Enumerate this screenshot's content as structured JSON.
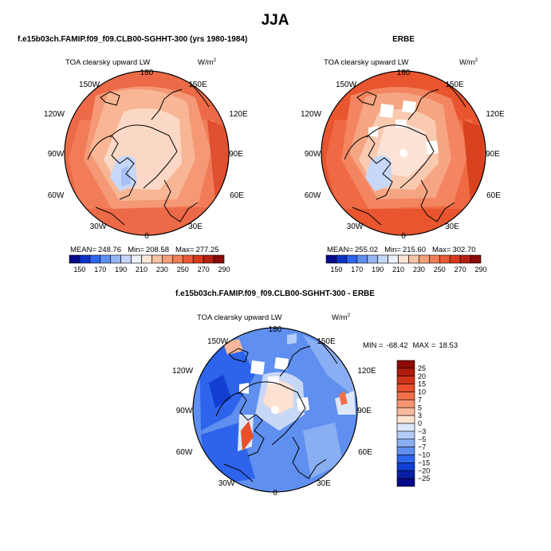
{
  "season_title": "JJA",
  "panels": {
    "model": {
      "header": "f.e15b03ch.FAMIP.f09_f09.CLB00-SGHHT-300 (yrs 1980-1984)",
      "plot_title": "TOA clearsky upward LW",
      "units": "W/m",
      "units_exp": "2",
      "lon_labels": {
        "top": "180",
        "upper_left": "150W",
        "upper_right": "150E",
        "left_upper": "120W",
        "right_upper": "120E",
        "left": "90W",
        "right": "90E",
        "left_lower": "60W",
        "right_lower": "60E",
        "lower_left": "30W",
        "lower_right": "30E",
        "bottom": "0"
      },
      "stats": {
        "mean_label": "MEAN=",
        "mean": "248.76",
        "min_label": "Min=",
        "min": "208.58",
        "max_label": "Max=",
        "max": "277.25"
      },
      "colorbar": {
        "labels": [
          "150",
          "170",
          "190",
          "210",
          "230",
          "250",
          "270",
          "290"
        ],
        "colors": [
          "#050a8a",
          "#0d32c8",
          "#2e64eb",
          "#5f8fef",
          "#96b5f3",
          "#c5d7f8",
          "#ebf0fb",
          "#fbe5d6",
          "#f8c2a4",
          "#f4a07a",
          "#f07e56",
          "#e95a36",
          "#d83a1e",
          "#b82010",
          "#8b0a05"
        ]
      }
    },
    "obs": {
      "header": "ERBE",
      "plot_title": "TOA clearsky upward LW",
      "units": "W/m",
      "units_exp": "2",
      "lon_labels": {
        "top": "180",
        "upper_left": "150W",
        "upper_right": "150E",
        "left_upper": "120W",
        "right_upper": "120E",
        "left": "90W",
        "right": "90E",
        "left_lower": "60W",
        "right_lower": "60E",
        "lower_left": "30W",
        "lower_right": "30E",
        "bottom": "0"
      },
      "stats": {
        "mean_label": "MEAN=",
        "mean": "255.02",
        "min_label": "Min=",
        "min": "215.60",
        "max_label": "Max=",
        "max": "302.70"
      },
      "colorbar": {
        "labels": [
          "150",
          "170",
          "190",
          "210",
          "230",
          "250",
          "270",
          "290"
        ],
        "colors": [
          "#050a8a",
          "#0d32c8",
          "#2e64eb",
          "#5f8fef",
          "#96b5f3",
          "#c5d7f8",
          "#ebf0fb",
          "#fbe5d6",
          "#f8c2a4",
          "#f4a07a",
          "#f07e56",
          "#e95a36",
          "#d83a1e",
          "#b82010",
          "#8b0a05"
        ]
      }
    },
    "diff": {
      "header": "f.e15b03ch.FAMIP.f09_f09.CLB00-SGHHT-300 - ERBE",
      "plot_title": "TOA clearsky upward LW",
      "units": "W/m",
      "units_exp": "2",
      "lon_labels": {
        "top": "180",
        "upper_left": "150W",
        "upper_right": "150E",
        "left_upper": "120W",
        "right_upper": "120E",
        "left": "90W",
        "right": "90E",
        "left_lower": "60W",
        "right_lower": "60E",
        "lower_left": "30W",
        "lower_right": "30E",
        "bottom": "0"
      },
      "stats": {
        "min_label": "MIN =",
        "min": "-68.42",
        "max_label": "MAX =",
        "max": "18.53"
      },
      "colorbar": {
        "labels": [
          "25",
          "20",
          "15",
          "10",
          "7",
          "5",
          "3",
          "0",
          "−3",
          "−5",
          "−7",
          "−10",
          "−15",
          "−20",
          "−25"
        ],
        "colors": [
          "#8b0a05",
          "#b01a0c",
          "#d03418",
          "#e8502c",
          "#f07048",
          "#f59472",
          "#f9b89c",
          "#fde2d2",
          "#dce8fa",
          "#b4ccf6",
          "#8aaef2",
          "#5f8fef",
          "#2e64eb",
          "#123fd2",
          "#0a1fa5",
          "#050a8a"
        ]
      }
    }
  }
}
